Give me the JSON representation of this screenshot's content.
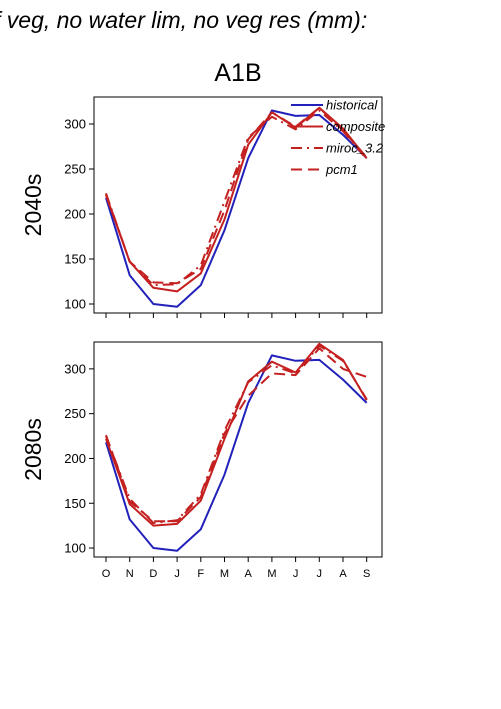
{
  "figure": {
    "header": "f veg, no water lim, no veg res (mm):",
    "scenario_title": "A1B"
  },
  "chart_data": [
    {
      "type": "line",
      "panel_label": "2040s",
      "categories": [
        "O",
        "N",
        "D",
        "J",
        "F",
        "M",
        "A",
        "M",
        "J",
        "J",
        "A",
        "S"
      ],
      "ylim": [
        90,
        330
      ],
      "yticks": [
        100,
        150,
        200,
        250,
        300
      ],
      "grid": false,
      "legend_placement": "top-right",
      "series": [
        {
          "name": "historical",
          "color": "#2222bb",
          "dash": "solid",
          "values": [
            218,
            132,
            100,
            97,
            121,
            182,
            262,
            315,
            309,
            310,
            288,
            262
          ]
        },
        {
          "name": "composite",
          "color": "#c42020",
          "dash": "solid",
          "values": [
            221,
            147,
            118,
            114,
            134,
            194,
            277,
            313,
            296,
            318,
            295,
            262
          ]
        },
        {
          "name": "miroc_3.2",
          "color": "#c42020",
          "dash": "dashdot",
          "values": [
            223,
            147,
            121,
            122,
            143,
            214,
            285,
            308,
            294,
            315,
            292,
            261
          ]
        },
        {
          "name": "pcm1",
          "color": "#c42020",
          "dash": "dashed",
          "values": [
            222,
            147,
            124,
            123,
            139,
            204,
            283,
            313,
            297,
            318,
            293,
            263
          ]
        }
      ]
    },
    {
      "type": "line",
      "panel_label": "2080s",
      "categories": [
        "O",
        "N",
        "D",
        "J",
        "F",
        "M",
        "A",
        "M",
        "J",
        "J",
        "A",
        "S"
      ],
      "ylim": [
        90,
        330
      ],
      "yticks": [
        100,
        150,
        200,
        250,
        300
      ],
      "grid": false,
      "series": [
        {
          "name": "historical",
          "color": "#2222bb",
          "dash": "solid",
          "values": [
            218,
            132,
            100,
            97,
            121,
            182,
            262,
            315,
            309,
            310,
            288,
            262
          ]
        },
        {
          "name": "composite",
          "color": "#c42020",
          "dash": "solid",
          "values": [
            222,
            149,
            125,
            127,
            153,
            222,
            286,
            308,
            296,
            328,
            310,
            265
          ]
        },
        {
          "name": "miroc_3.2",
          "color": "#c42020",
          "dash": "dashdot",
          "values": [
            225,
            155,
            128,
            131,
            160,
            231,
            285,
            304,
            295,
            326,
            309,
            266
          ]
        },
        {
          "name": "pcm1",
          "color": "#c42020",
          "dash": "dashed",
          "values": [
            226,
            152,
            130,
            130,
            157,
            228,
            270,
            295,
            293,
            323,
            300,
            291
          ]
        }
      ]
    }
  ]
}
